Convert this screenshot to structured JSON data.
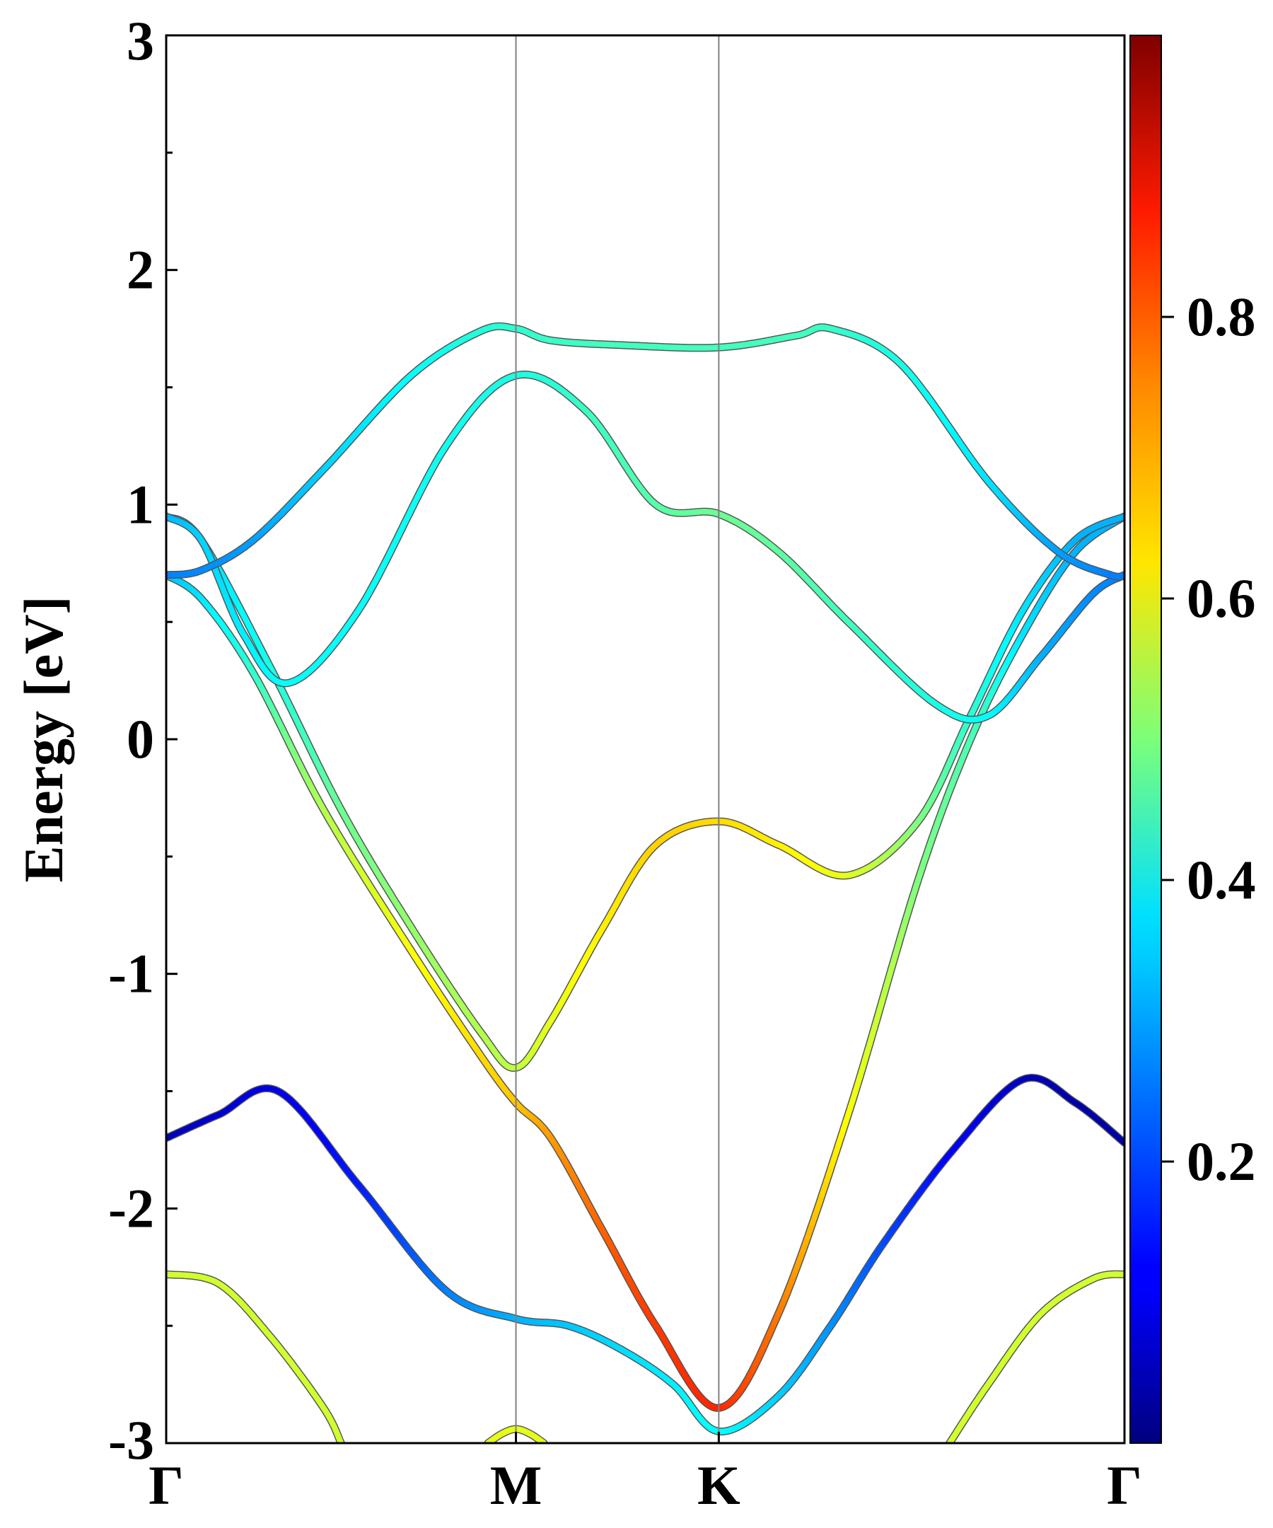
{
  "chart_data": {
    "type": "line",
    "title": "",
    "ylabel": "Energy [eV]",
    "xlabel": "",
    "ylim": [
      -3,
      3
    ],
    "y_ticks": [
      "3",
      "2",
      "1",
      "0",
      "-1",
      "-2",
      "-3"
    ],
    "k_path": [
      {
        "label": "Γ",
        "x": 0
      },
      {
        "label": "M",
        "x": 1
      },
      {
        "label": "K",
        "x": 1.58
      },
      {
        "label": "Γ",
        "x": 2.74
      }
    ],
    "colorbar": {
      "colormap": "jet",
      "range": [
        0,
        1
      ],
      "tick_labels": [
        "0.2",
        "0.4",
        "0.6",
        "0.8"
      ]
    },
    "bands": [
      {
        "name": "band-1",
        "x": [
          0,
          0.15,
          0.32,
          0.55,
          0.8,
          1.0,
          1.15,
          1.3,
          1.45,
          1.58,
          1.75,
          1.9,
          2.05,
          2.25,
          2.45,
          2.6,
          2.74
        ],
        "y": [
          -1.7,
          -1.6,
          -1.5,
          -1.9,
          -2.35,
          -2.47,
          -2.5,
          -2.6,
          -2.75,
          -2.95,
          -2.8,
          -2.5,
          -2.15,
          -1.75,
          -1.45,
          -1.55,
          -1.72
        ],
        "w": [
          0.05,
          0.08,
          0.1,
          0.15,
          0.25,
          0.3,
          0.32,
          0.34,
          0.36,
          0.38,
          0.33,
          0.27,
          0.2,
          0.12,
          0.06,
          0.04,
          0.04
        ]
      },
      {
        "name": "band-2",
        "x": [
          0,
          0.1,
          0.25,
          0.45,
          0.7,
          0.9,
          1.0,
          1.1,
          1.25,
          1.4,
          1.58,
          1.75,
          1.95,
          2.15,
          2.3,
          2.45,
          2.6,
          2.74
        ],
        "y": [
          0.7,
          0.6,
          0.28,
          -0.3,
          -0.9,
          -1.35,
          -1.55,
          -1.7,
          -2.1,
          -2.5,
          -2.85,
          -2.45,
          -1.6,
          -0.6,
          0.0,
          0.45,
          0.8,
          0.95
        ],
        "w": [
          0.3,
          0.35,
          0.42,
          0.55,
          0.62,
          0.66,
          0.68,
          0.72,
          0.78,
          0.82,
          0.84,
          0.76,
          0.62,
          0.5,
          0.45,
          0.35,
          0.3,
          0.3
        ]
      },
      {
        "name": "band-3",
        "x": [
          0,
          0.1,
          0.3,
          0.5,
          0.7,
          0.9,
          1.0,
          1.1,
          1.25,
          1.4,
          1.58,
          1.75,
          1.95,
          2.15,
          2.3,
          2.45,
          2.6,
          2.74
        ],
        "y": [
          0.95,
          0.85,
          0.3,
          -0.3,
          -0.8,
          -1.25,
          -1.4,
          -1.2,
          -0.8,
          -0.45,
          -0.35,
          -0.45,
          -0.58,
          -0.35,
          0.1,
          0.55,
          0.85,
          0.95
        ],
        "w": [
          0.3,
          0.33,
          0.4,
          0.48,
          0.52,
          0.55,
          0.56,
          0.6,
          0.64,
          0.67,
          0.66,
          0.64,
          0.6,
          0.5,
          0.42,
          0.35,
          0.3,
          0.3
        ]
      },
      {
        "name": "band-4",
        "x": [
          0,
          0.1,
          0.22,
          0.35,
          0.55,
          0.8,
          1.0,
          1.2,
          1.4,
          1.58,
          1.75,
          1.95,
          2.2,
          2.35,
          2.5,
          2.65,
          2.74
        ],
        "y": [
          0.95,
          0.85,
          0.45,
          0.24,
          0.55,
          1.25,
          1.55,
          1.4,
          1.0,
          0.96,
          0.8,
          0.5,
          0.15,
          0.1,
          0.35,
          0.62,
          0.7
        ],
        "w": [
          0.3,
          0.33,
          0.36,
          0.38,
          0.38,
          0.39,
          0.4,
          0.43,
          0.46,
          0.48,
          0.47,
          0.44,
          0.4,
          0.38,
          0.3,
          0.26,
          0.25
        ]
      },
      {
        "name": "band-5",
        "x": [
          0,
          0.1,
          0.25,
          0.45,
          0.7,
          0.9,
          1.0,
          1.1,
          1.3,
          1.58,
          1.8,
          1.9,
          2.1,
          2.35,
          2.55,
          2.7,
          2.74
        ],
        "y": [
          0.7,
          0.72,
          0.85,
          1.15,
          1.55,
          1.74,
          1.75,
          1.7,
          1.68,
          1.67,
          1.72,
          1.75,
          1.6,
          1.1,
          0.8,
          0.7,
          0.7
        ],
        "w": [
          0.25,
          0.26,
          0.28,
          0.33,
          0.38,
          0.41,
          0.42,
          0.43,
          0.44,
          0.44,
          0.44,
          0.43,
          0.4,
          0.35,
          0.28,
          0.25,
          0.25
        ]
      },
      {
        "name": "band-6",
        "x": [
          0,
          0.15,
          0.3,
          0.45,
          0.5
        ],
        "y": [
          -2.28,
          -2.32,
          -2.55,
          -2.85,
          -3.0
        ],
        "w": [
          0.58,
          0.58,
          0.58,
          0.58,
          0.58
        ]
      },
      {
        "name": "band-7",
        "x": [
          2.24,
          2.35,
          2.5,
          2.65,
          2.74
        ],
        "y": [
          -3.0,
          -2.75,
          -2.45,
          -2.3,
          -2.28
        ],
        "w": [
          0.58,
          0.58,
          0.58,
          0.58,
          0.58
        ]
      },
      {
        "name": "band-8",
        "x": [
          0.92,
          0.96,
          1.0,
          1.04,
          1.08
        ],
        "y": [
          -3.0,
          -2.96,
          -2.94,
          -2.96,
          -3.0
        ],
        "w": [
          0.6,
          0.6,
          0.6,
          0.6,
          0.6
        ]
      }
    ]
  }
}
